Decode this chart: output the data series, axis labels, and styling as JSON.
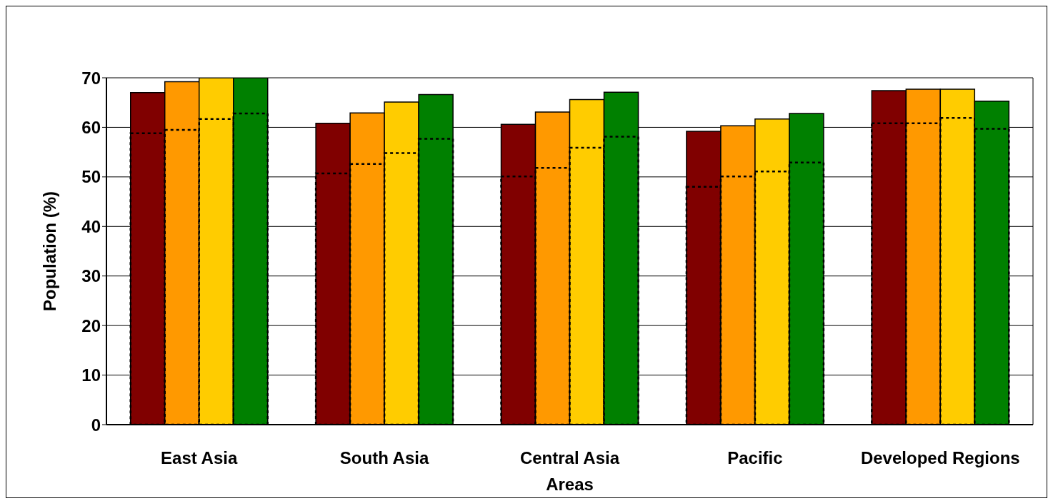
{
  "chart_data": {
    "type": "bar",
    "xlabel": "Areas",
    "ylabel": "Population (%)",
    "categories": [
      "East Asia",
      "South Asia",
      "Central Asia",
      "Pacific",
      "Developed Regions"
    ],
    "ylim": [
      0,
      70
    ],
    "yticks": [
      0,
      10,
      20,
      30,
      40,
      50,
      60,
      70
    ],
    "grid": "y",
    "series": [
      {
        "color": "#800000",
        "line_style": "solid",
        "values": [
          67.0,
          60.8,
          60.6,
          59.2,
          67.4
        ]
      },
      {
        "color": "#000000",
        "line_style": "dotted",
        "values": [
          58.8,
          50.7,
          50.1,
          48.0,
          60.8
        ]
      },
      {
        "color": "#ff9900",
        "line_style": "solid",
        "values": [
          69.2,
          62.9,
          63.1,
          60.3,
          67.7
        ]
      },
      {
        "color": "#000000",
        "line_style": "dotted",
        "values": [
          59.5,
          52.6,
          51.8,
          50.1,
          60.8
        ]
      },
      {
        "color": "#ffcc00",
        "line_style": "solid",
        "values": [
          70,
          65.1,
          65.6,
          61.7,
          67.7
        ]
      },
      {
        "color": "#000000",
        "line_style": "dotted",
        "values": [
          61.7,
          54.8,
          55.9,
          51.1,
          61.9
        ]
      },
      {
        "color": "#008000",
        "line_style": "solid",
        "values": [
          70,
          66.6,
          67.1,
          62.8,
          65.3
        ]
      },
      {
        "color": "#000000",
        "line_style": "dotted",
        "values": [
          62.8,
          57.7,
          58.1,
          52.9,
          59.7
        ]
      }
    ]
  }
}
